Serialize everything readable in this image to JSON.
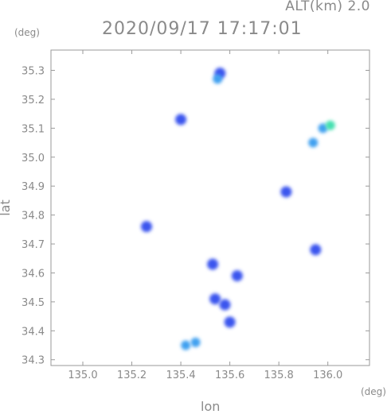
{
  "header": {
    "alt_label": "ALT(km)  2.0",
    "timestamp": "2020/09/17 17:17:01",
    "y_unit": "(deg)",
    "x_unit": "(deg)"
  },
  "chart_data": {
    "type": "heatmap",
    "title": "2020/09/17 17:17:01",
    "xlabel": "lon",
    "ylabel": "lat",
    "xlim": [
      134.87,
      136.17
    ],
    "ylim": [
      34.28,
      35.37
    ],
    "xticks": [
      135.0,
      135.2,
      135.4,
      135.6,
      135.8,
      136.0
    ],
    "xtick_labels": [
      "135.0",
      "135.2",
      "135.4",
      "135.6",
      "135.8",
      "136.0"
    ],
    "yticks": [
      34.3,
      34.4,
      34.5,
      34.6,
      34.7,
      34.8,
      34.9,
      35.0,
      35.1,
      35.2,
      35.3
    ],
    "ytick_labels": [
      "34.3",
      "34.4",
      "34.5",
      "34.6",
      "34.7",
      "34.8",
      "34.9",
      "35.0",
      "35.1",
      "35.2",
      "35.3"
    ],
    "grid": false,
    "colors": {
      "weak": "#3b55ee",
      "medium": "#3fa0f0",
      "strong": "#45e0b0",
      "axis": "#9a9a9a"
    },
    "echo_cells": [
      {
        "lon": 135.56,
        "lat": 35.29,
        "level": "weak"
      },
      {
        "lon": 135.55,
        "lat": 35.27,
        "level": "medium"
      },
      {
        "lon": 135.98,
        "lat": 35.1,
        "level": "medium"
      },
      {
        "lon": 136.01,
        "lat": 35.11,
        "level": "strong"
      },
      {
        "lon": 135.94,
        "lat": 35.05,
        "level": "medium"
      },
      {
        "lon": 135.4,
        "lat": 35.13,
        "level": "weak"
      },
      {
        "lon": 135.53,
        "lat": 34.63,
        "level": "weak"
      },
      {
        "lon": 135.54,
        "lat": 34.51,
        "level": "weak"
      },
      {
        "lon": 135.58,
        "lat": 34.49,
        "level": "weak"
      },
      {
        "lon": 135.63,
        "lat": 34.59,
        "level": "weak"
      },
      {
        "lon": 135.42,
        "lat": 34.35,
        "level": "medium"
      },
      {
        "lon": 135.46,
        "lat": 34.36,
        "level": "medium"
      },
      {
        "lon": 135.83,
        "lat": 34.88,
        "level": "weak"
      },
      {
        "lon": 135.26,
        "lat": 34.76,
        "level": "weak"
      },
      {
        "lon": 135.95,
        "lat": 34.68,
        "level": "weak"
      },
      {
        "lon": 135.6,
        "lat": 34.43,
        "level": "weak"
      }
    ]
  }
}
